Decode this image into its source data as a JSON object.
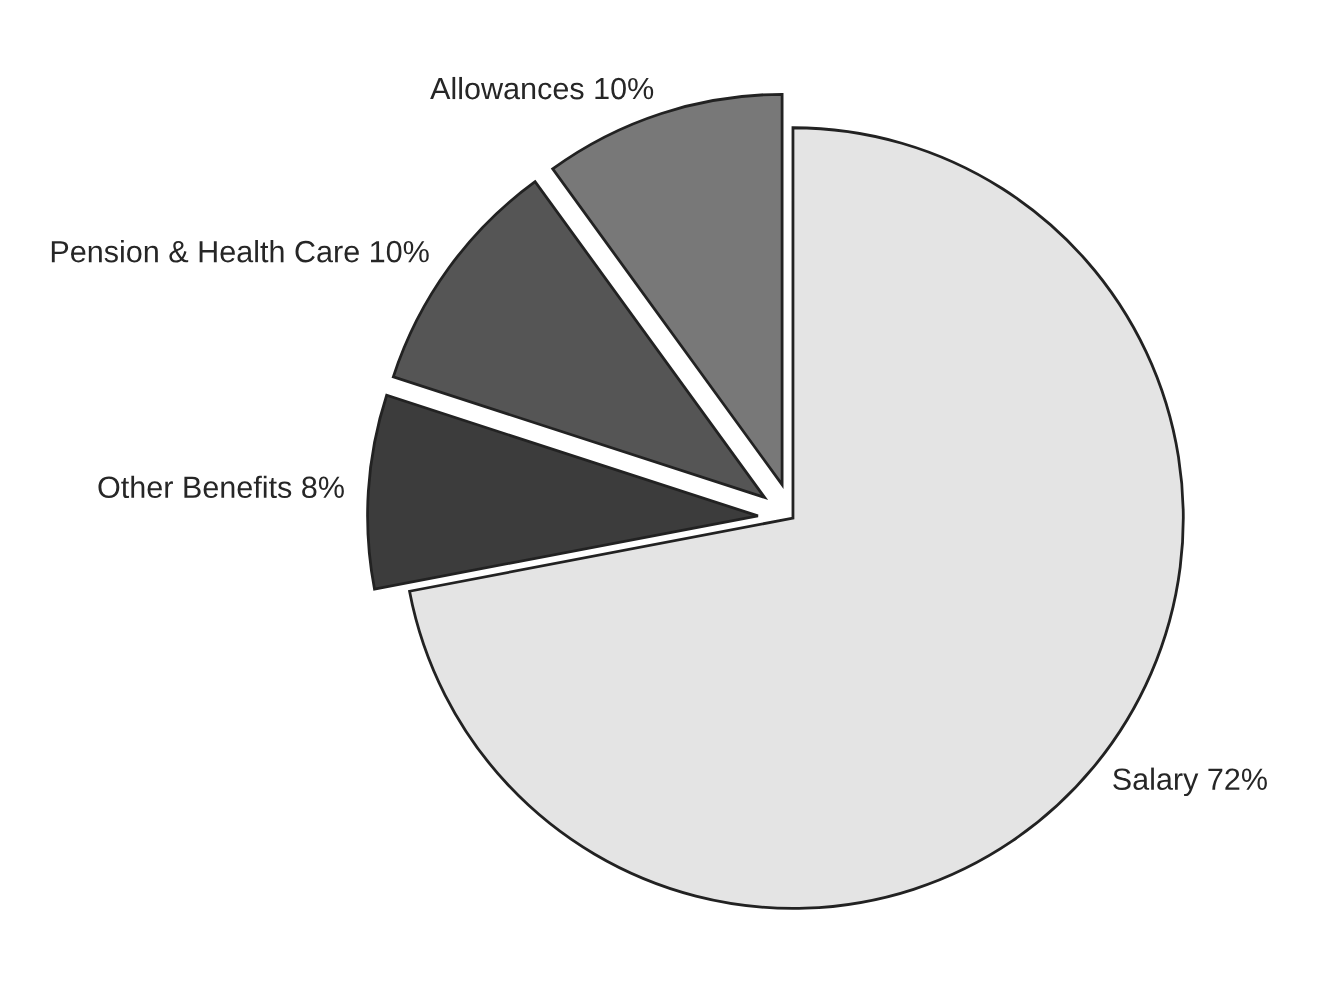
{
  "chart_data": {
    "type": "pie",
    "categories": [
      "Salary",
      "Other Benefits",
      "Pension & Health Care",
      "Allowances"
    ],
    "values": [
      72,
      8,
      10,
      10
    ],
    "value_labels": [
      "72%",
      "8%",
      "10%",
      "10%"
    ],
    "colors": [
      "#e4e4e4",
      "#3c3c3c",
      "#555555",
      "#787878"
    ],
    "legend": false
  }
}
